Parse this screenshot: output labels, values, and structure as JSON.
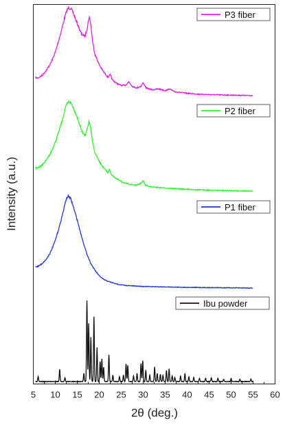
{
  "chart_data": {
    "type": "line",
    "title": "",
    "xlabel": "2θ (deg.)",
    "ylabel": "Intensity (a.u.)",
    "xlim": [
      5,
      60
    ],
    "xticks": [
      5,
      10,
      15,
      20,
      25,
      30,
      35,
      40,
      45,
      50,
      55,
      60
    ],
    "yticks_shown": false,
    "grid": false,
    "series": [
      {
        "name": "P3 fiber",
        "color": "#e020e0",
        "points": [
          [
            5.5,
            0.22
          ],
          [
            6,
            0.21
          ],
          [
            7,
            0.24
          ],
          [
            8,
            0.3
          ],
          [
            9,
            0.38
          ],
          [
            10,
            0.5
          ],
          [
            11,
            0.67
          ],
          [
            12,
            0.86
          ],
          [
            12.5,
            0.95
          ],
          [
            13,
            1.0
          ],
          [
            13.5,
            0.99
          ],
          [
            14,
            0.95
          ],
          [
            15,
            0.82
          ],
          [
            16,
            0.7
          ],
          [
            16.8,
            0.68
          ],
          [
            17.3,
            0.78
          ],
          [
            17.7,
            0.9
          ],
          [
            18,
            0.84
          ],
          [
            18.5,
            0.62
          ],
          [
            19,
            0.48
          ],
          [
            20,
            0.36
          ],
          [
            21,
            0.28
          ],
          [
            22,
            0.22
          ],
          [
            22.5,
            0.25
          ],
          [
            23,
            0.19
          ],
          [
            24,
            0.15
          ],
          [
            25,
            0.13
          ],
          [
            26,
            0.13
          ],
          [
            26.7,
            0.17
          ],
          [
            27.5,
            0.12
          ],
          [
            28.5,
            0.1
          ],
          [
            29.5,
            0.12
          ],
          [
            30,
            0.16
          ],
          [
            30.7,
            0.1
          ],
          [
            32,
            0.08
          ],
          [
            33.5,
            0.09
          ],
          [
            35,
            0.07
          ],
          [
            36,
            0.09
          ],
          [
            37,
            0.06
          ],
          [
            40,
            0.04
          ],
          [
            43,
            0.03
          ],
          [
            46,
            0.025
          ],
          [
            50,
            0.02
          ],
          [
            55,
            0.015
          ]
        ]
      },
      {
        "name": "P2 fiber",
        "color": "#33ee33",
        "points": [
          [
            5.5,
            0.27
          ],
          [
            6,
            0.27
          ],
          [
            7,
            0.3
          ],
          [
            8,
            0.36
          ],
          [
            9,
            0.44
          ],
          [
            10,
            0.55
          ],
          [
            11,
            0.7
          ],
          [
            12,
            0.87
          ],
          [
            12.5,
            0.96
          ],
          [
            13,
            1.0
          ],
          [
            13.5,
            0.99
          ],
          [
            14,
            0.95
          ],
          [
            15,
            0.83
          ],
          [
            16,
            0.68
          ],
          [
            16.8,
            0.63
          ],
          [
            17.3,
            0.7
          ],
          [
            17.7,
            0.78
          ],
          [
            18,
            0.73
          ],
          [
            18.5,
            0.55
          ],
          [
            19,
            0.44
          ],
          [
            20,
            0.34
          ],
          [
            21,
            0.27
          ],
          [
            22,
            0.22
          ],
          [
            22.3,
            0.26
          ],
          [
            22.7,
            0.2
          ],
          [
            24,
            0.15
          ],
          [
            25,
            0.12
          ],
          [
            26,
            0.1
          ],
          [
            27,
            0.09
          ],
          [
            28.5,
            0.08
          ],
          [
            29.5,
            0.1
          ],
          [
            30,
            0.13
          ],
          [
            30.5,
            0.08
          ],
          [
            32,
            0.06
          ],
          [
            35,
            0.05
          ],
          [
            38,
            0.04
          ],
          [
            42,
            0.03
          ],
          [
            46,
            0.025
          ],
          [
            50,
            0.02
          ],
          [
            55,
            0.015
          ]
        ]
      },
      {
        "name": "P1 fiber",
        "color": "#2233cc",
        "points": [
          [
            5.5,
            0.24
          ],
          [
            6,
            0.24
          ],
          [
            7,
            0.27
          ],
          [
            8,
            0.32
          ],
          [
            9,
            0.4
          ],
          [
            10,
            0.52
          ],
          [
            11,
            0.68
          ],
          [
            12,
            0.87
          ],
          [
            12.5,
            0.97
          ],
          [
            13,
            1.0
          ],
          [
            13.5,
            0.97
          ],
          [
            14,
            0.9
          ],
          [
            15,
            0.74
          ],
          [
            16,
            0.56
          ],
          [
            17,
            0.4
          ],
          [
            18,
            0.28
          ],
          [
            19,
            0.2
          ],
          [
            20,
            0.14
          ],
          [
            21,
            0.1
          ],
          [
            22,
            0.08
          ],
          [
            24,
            0.05
          ],
          [
            26,
            0.035
          ],
          [
            28,
            0.03
          ],
          [
            30,
            0.025
          ],
          [
            35,
            0.02
          ],
          [
            40,
            0.015
          ],
          [
            45,
            0.012
          ],
          [
            50,
            0.01
          ],
          [
            55,
            0.008
          ]
        ]
      },
      {
        "name": "Ibu powder",
        "color": "#111111",
        "peaks": [
          [
            6.1,
            0.06
          ],
          [
            11.0,
            0.15
          ],
          [
            12.2,
            0.05
          ],
          [
            16.5,
            0.1
          ],
          [
            17.2,
            1.0
          ],
          [
            17.6,
            0.72
          ],
          [
            18.1,
            0.55
          ],
          [
            18.8,
            0.8
          ],
          [
            19.5,
            0.42
          ],
          [
            20.2,
            0.25
          ],
          [
            20.6,
            0.28
          ],
          [
            21.0,
            0.18
          ],
          [
            22.2,
            0.33
          ],
          [
            23.1,
            0.08
          ],
          [
            24.6,
            0.06
          ],
          [
            25.5,
            0.08
          ],
          [
            26.1,
            0.22
          ],
          [
            26.5,
            0.2
          ],
          [
            27.8,
            0.07
          ],
          [
            28.6,
            0.1
          ],
          [
            29.5,
            0.22
          ],
          [
            29.9,
            0.26
          ],
          [
            30.6,
            0.14
          ],
          [
            31.5,
            0.08
          ],
          [
            32.6,
            0.18
          ],
          [
            33.2,
            0.1
          ],
          [
            33.9,
            0.09
          ],
          [
            34.5,
            0.08
          ],
          [
            35.3,
            0.14
          ],
          [
            35.9,
            0.16
          ],
          [
            36.6,
            0.07
          ],
          [
            37.2,
            0.05
          ],
          [
            38.5,
            0.07
          ],
          [
            39.5,
            0.1
          ],
          [
            40.4,
            0.06
          ],
          [
            41.5,
            0.05
          ],
          [
            42.8,
            0.04
          ],
          [
            44.2,
            0.04
          ],
          [
            45.5,
            0.05
          ],
          [
            47,
            0.04
          ],
          [
            48.3,
            0.03
          ],
          [
            50,
            0.04
          ],
          [
            52,
            0.03
          ],
          [
            54.5,
            0.03
          ]
        ]
      }
    ],
    "legend_position": "top-right of each trace"
  }
}
